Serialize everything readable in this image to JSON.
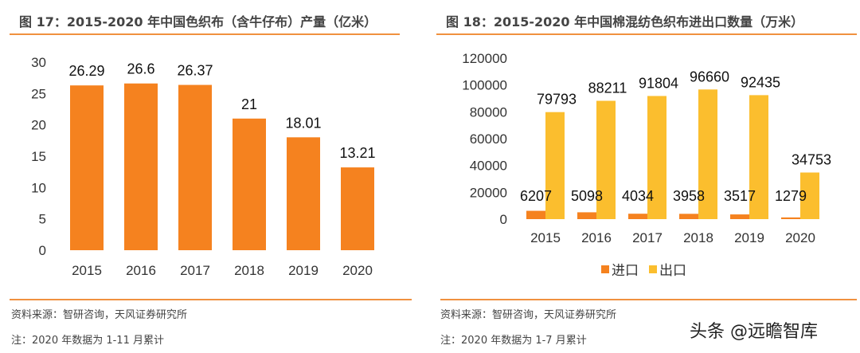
{
  "chart_data": [
    {
      "type": "bar",
      "title": "图 17：2015-2020 年中国色织布（含牛仔布）产量（亿米）",
      "categories": [
        "2015",
        "2016",
        "2017",
        "2018",
        "2019",
        "2020"
      ],
      "values": [
        26.29,
        26.6,
        26.37,
        21,
        18.01,
        13.21
      ],
      "value_labels": [
        "26.29",
        "26.6",
        "26.37",
        "21",
        "18.01",
        "13.21"
      ],
      "ylim": [
        0,
        30
      ],
      "yticks": [
        "0",
        "5",
        "10",
        "15",
        "20",
        "25",
        "30"
      ],
      "grid": false,
      "color": "#F5821F",
      "source": "资料来源：智研咨询，天风证券研究所",
      "note": "注：2020 年数据为 1-11 月累计"
    },
    {
      "type": "bar",
      "title": "图 18：2015-2020 年中国棉混纺色织布进出口数量（万米）",
      "categories": [
        "2015",
        "2016",
        "2017",
        "2018",
        "2019",
        "2020"
      ],
      "series": [
        {
          "name": "进口",
          "values": [
            6207,
            5098,
            4034,
            3958,
            3517,
            1279
          ],
          "color": "#F5821F"
        },
        {
          "name": "出口",
          "values": [
            79793,
            88211,
            91804,
            96660,
            92435,
            34753
          ],
          "color": "#FBBE2E"
        }
      ],
      "ylim": [
        0,
        120000
      ],
      "yticks": [
        "0",
        "20000",
        "40000",
        "60000",
        "80000",
        "100000",
        "120000"
      ],
      "grid": false,
      "legend": "bottom",
      "source": "资料来源：智研咨询，天风证券研究所",
      "note": "注：2020 年数据为 1-7 月累计"
    }
  ],
  "watermark": "头条 @远瞻智库"
}
